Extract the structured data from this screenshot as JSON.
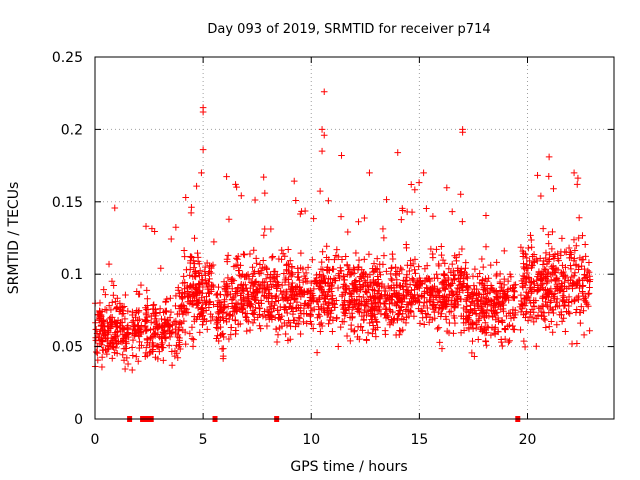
{
  "chart_data": {
    "type": "scatter",
    "title": "Day 093 of 2019, SRMTID for receiver p714",
    "xlabel": "GPS time / hours",
    "ylabel": "SRMTID / TECUs",
    "xlim": [
      0,
      24
    ],
    "ylim": [
      0,
      0.25
    ],
    "xticks": [
      0,
      5,
      10,
      15,
      20
    ],
    "xtick_labels": [
      "0",
      "5",
      "10",
      "15",
      "20"
    ],
    "yticks": [
      0,
      0.05,
      0.1,
      0.15,
      0.2,
      0.25
    ],
    "ytick_labels": [
      "0",
      "0.05",
      "0.1",
      "0.15",
      "0.2",
      "0.25"
    ],
    "grid": true,
    "marker": "+",
    "series_color": "#ff0000",
    "point_count": 2600,
    "value_range": {
      "min": 0.02,
      "max": 0.226
    },
    "outliers": [
      {
        "x": 5.0,
        "y": 0.215
      },
      {
        "x": 5.0,
        "y": 0.212
      },
      {
        "x": 5.0,
        "y": 0.186
      },
      {
        "x": 10.6,
        "y": 0.226
      },
      {
        "x": 10.5,
        "y": 0.2
      },
      {
        "x": 10.6,
        "y": 0.196
      },
      {
        "x": 10.5,
        "y": 0.185
      },
      {
        "x": 17.0,
        "y": 0.2
      },
      {
        "x": 17.0,
        "y": 0.198
      },
      {
        "x": 21.0,
        "y": 0.181
      },
      {
        "x": 11.4,
        "y": 0.182
      },
      {
        "x": 14.0,
        "y": 0.184
      },
      {
        "x": 7.8,
        "y": 0.167
      },
      {
        "x": 6.5,
        "y": 0.162
      },
      {
        "x": 22.3,
        "y": 0.162
      }
    ],
    "zero_markers_x": [
      1.6,
      2.2,
      2.4,
      2.6,
      5.55,
      8.4,
      19.55
    ]
  }
}
